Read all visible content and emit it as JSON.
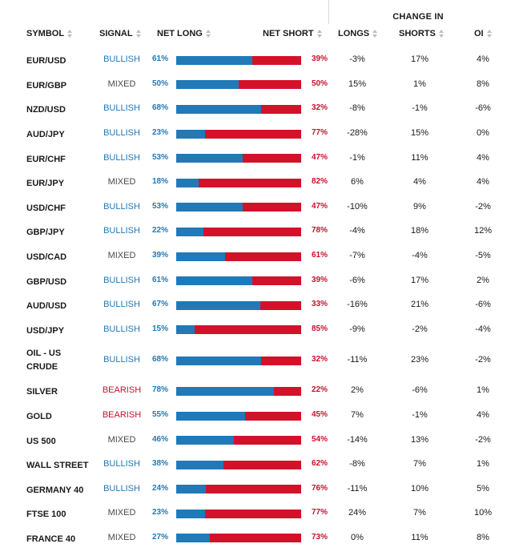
{
  "group_header": "CHANGE IN",
  "columns": {
    "symbol": "SYMBOL",
    "signal": "SIGNAL",
    "net_long": "NET LONG",
    "net_short": "NET SHORT",
    "longs": "LONGS",
    "shorts": "SHORTS",
    "oi": "OI"
  },
  "colors": {
    "long": "#2179b8",
    "short": "#d3122a",
    "bearish": "#c8102e"
  },
  "rows": [
    {
      "symbol": "EUR/USD",
      "signal": "BULLISH",
      "net_long": 61,
      "net_long_text": "61%",
      "net_short_text": "39%",
      "longs": "-3%",
      "shorts": "17%",
      "oi": "4%"
    },
    {
      "symbol": "EUR/GBP",
      "signal": "MIXED",
      "net_long": 50,
      "net_long_text": "50%",
      "net_short_text": "50%",
      "longs": "15%",
      "shorts": "1%",
      "oi": "8%"
    },
    {
      "symbol": "NZD/USD",
      "signal": "BULLISH",
      "net_long": 68,
      "net_long_text": "68%",
      "net_short_text": "32%",
      "longs": "-8%",
      "shorts": "-1%",
      "oi": "-6%"
    },
    {
      "symbol": "AUD/JPY",
      "signal": "BULLISH",
      "net_long": 23,
      "net_long_text": "23%",
      "net_short_text": "77%",
      "longs": "-28%",
      "shorts": "15%",
      "oi": "0%"
    },
    {
      "symbol": "EUR/CHF",
      "signal": "BULLISH",
      "net_long": 53,
      "net_long_text": "53%",
      "net_short_text": "47%",
      "longs": "-1%",
      "shorts": "11%",
      "oi": "4%"
    },
    {
      "symbol": "EUR/JPY",
      "signal": "MIXED",
      "net_long": 18,
      "net_long_text": "18%",
      "net_short_text": "82%",
      "longs": "6%",
      "shorts": "4%",
      "oi": "4%"
    },
    {
      "symbol": "USD/CHF",
      "signal": "BULLISH",
      "net_long": 53,
      "net_long_text": "53%",
      "net_short_text": "47%",
      "longs": "-10%",
      "shorts": "9%",
      "oi": "-2%"
    },
    {
      "symbol": "GBP/JPY",
      "signal": "BULLISH",
      "net_long": 22,
      "net_long_text": "22%",
      "net_short_text": "78%",
      "longs": "-4%",
      "shorts": "18%",
      "oi": "12%"
    },
    {
      "symbol": "USD/CAD",
      "signal": "MIXED",
      "net_long": 39,
      "net_long_text": "39%",
      "net_short_text": "61%",
      "longs": "-7%",
      "shorts": "-4%",
      "oi": "-5%"
    },
    {
      "symbol": "GBP/USD",
      "signal": "BULLISH",
      "net_long": 61,
      "net_long_text": "61%",
      "net_short_text": "39%",
      "longs": "-6%",
      "shorts": "17%",
      "oi": "2%"
    },
    {
      "symbol": "AUD/USD",
      "signal": "BULLISH",
      "net_long": 67,
      "net_long_text": "67%",
      "net_short_text": "33%",
      "longs": "-16%",
      "shorts": "21%",
      "oi": "-6%"
    },
    {
      "symbol": "USD/JPY",
      "signal": "BULLISH",
      "net_long": 15,
      "net_long_text": "15%",
      "net_short_text": "85%",
      "longs": "-9%",
      "shorts": "-2%",
      "oi": "-4%"
    },
    {
      "symbol": "OIL - US CRUDE",
      "signal": "BULLISH",
      "net_long": 68,
      "net_long_text": "68%",
      "net_short_text": "32%",
      "longs": "-11%",
      "shorts": "23%",
      "oi": "-2%"
    },
    {
      "symbol": "SILVER",
      "signal": "BEARISH",
      "net_long": 78,
      "net_long_text": "78%",
      "net_short_text": "22%",
      "longs": "2%",
      "shorts": "-6%",
      "oi": "1%"
    },
    {
      "symbol": "GOLD",
      "signal": "BEARISH",
      "net_long": 55,
      "net_long_text": "55%",
      "net_short_text": "45%",
      "longs": "7%",
      "shorts": "-1%",
      "oi": "4%"
    },
    {
      "symbol": "US 500",
      "signal": "MIXED",
      "net_long": 46,
      "net_long_text": "46%",
      "net_short_text": "54%",
      "longs": "-14%",
      "shorts": "13%",
      "oi": "-2%"
    },
    {
      "symbol": "WALL STREET",
      "signal": "BULLISH",
      "net_long": 38,
      "net_long_text": "38%",
      "net_short_text": "62%",
      "longs": "-8%",
      "shorts": "7%",
      "oi": "1%"
    },
    {
      "symbol": "GERMANY 40",
      "signal": "BULLISH",
      "net_long": 24,
      "net_long_text": "24%",
      "net_short_text": "76%",
      "longs": "-11%",
      "shorts": "10%",
      "oi": "5%"
    },
    {
      "symbol": "FTSE 100",
      "signal": "MIXED",
      "net_long": 23,
      "net_long_text": "23%",
      "net_short_text": "77%",
      "longs": "24%",
      "shorts": "7%",
      "oi": "10%"
    },
    {
      "symbol": "FRANCE 40",
      "signal": "MIXED",
      "net_long": 27,
      "net_long_text": "27%",
      "net_short_text": "73%",
      "longs": "0%",
      "shorts": "11%",
      "oi": "8%"
    }
  ]
}
